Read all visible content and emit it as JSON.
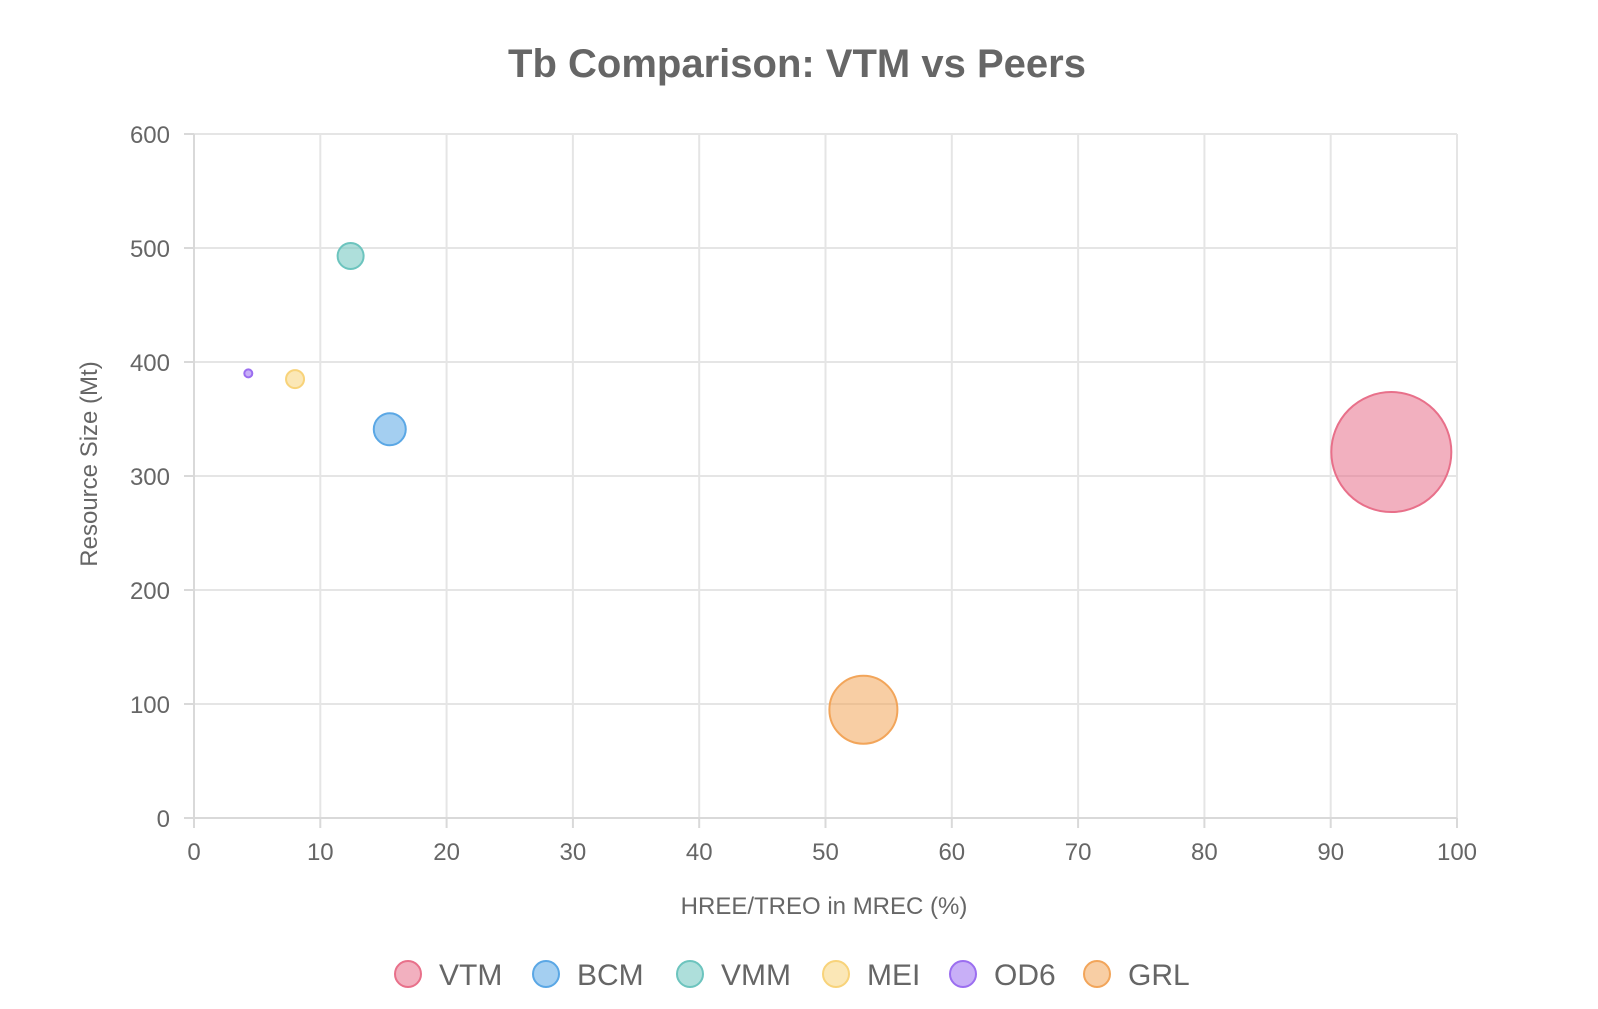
{
  "chart_data": {
    "type": "bubble",
    "title": "Tb Comparison: VTM vs Peers",
    "xlabel": "HREE/TREO in MREC (%)",
    "ylabel": "Resource Size (Mt)",
    "xlim": [
      0,
      100
    ],
    "ylim": [
      0,
      600
    ],
    "xticks": [
      0,
      10,
      20,
      30,
      40,
      50,
      60,
      70,
      80,
      90,
      100
    ],
    "yticks": [
      0,
      100,
      200,
      300,
      400,
      500,
      600
    ],
    "grid": true,
    "legend_position": "bottom",
    "series": [
      {
        "name": "VTM",
        "x": 94.8,
        "y": 321,
        "r": 60,
        "color": "#e8708a"
      },
      {
        "name": "BCM",
        "x": 15.5,
        "y": 341,
        "r": 16,
        "color": "#5aa7e5"
      },
      {
        "name": "VMM",
        "x": 12.4,
        "y": 493,
        "r": 13,
        "color": "#6cc4be"
      },
      {
        "name": "MEI",
        "x": 8.0,
        "y": 385,
        "r": 9,
        "color": "#f8d37a"
      },
      {
        "name": "OD6",
        "x": 4.3,
        "y": 390,
        "r": 4,
        "color": "#9b6ef0"
      },
      {
        "name": "GRL",
        "x": 53.0,
        "y": 95,
        "r": 34,
        "color": "#f2a55a"
      }
    ]
  }
}
